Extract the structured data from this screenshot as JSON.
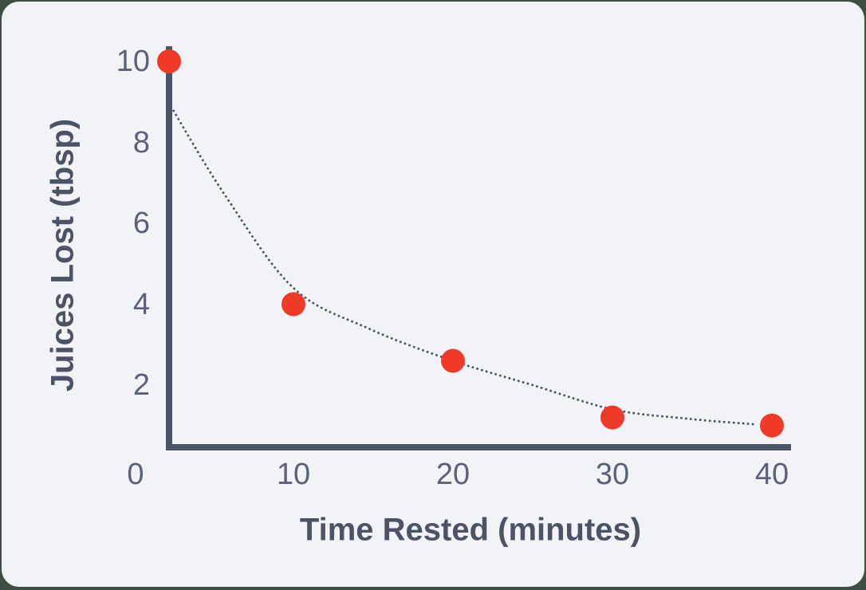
{
  "page": {
    "background_color": "#3d4f43",
    "card_color": "#f2f3f7"
  },
  "chart_data": {
    "type": "scatter",
    "title": "",
    "xlabel": "Time Rested (minutes)",
    "ylabel": "Juices Lost (tbsp)",
    "x_tick_labels": [
      "0",
      "10",
      "20",
      "30",
      "40"
    ],
    "y_tick_labels": [
      "10",
      "8",
      "6",
      "4",
      "2"
    ],
    "x_ticks": [
      0,
      10,
      20,
      30,
      40
    ],
    "y_ticks": [
      10,
      8,
      6,
      4,
      2
    ],
    "xlim": [
      0,
      40
    ],
    "ylim": [
      0,
      10
    ],
    "grid": false,
    "legend": null,
    "points": [
      {
        "x": 0,
        "y": 10
      },
      {
        "x": 10,
        "y": 4
      },
      {
        "x": 20,
        "y": 2.6
      },
      {
        "x": 30,
        "y": 1.2
      },
      {
        "x": 40,
        "y": 1
      }
    ],
    "trendline": {
      "style": "dotted",
      "samples": [
        {
          "x": 2.3,
          "y": 8.9
        },
        {
          "x": 5.7,
          "y": 6.7
        },
        {
          "x": 10,
          "y": 4.4
        },
        {
          "x": 14.7,
          "y": 3.4
        },
        {
          "x": 20,
          "y": 2.6
        },
        {
          "x": 25,
          "y": 2.0
        },
        {
          "x": 30,
          "y": 1.4
        },
        {
          "x": 34.7,
          "y": 1.17
        },
        {
          "x": 38.9,
          "y": 1.03
        }
      ]
    },
    "colors": {
      "point": "#f03a28",
      "axis": "#4a5568",
      "trend": "#454f66",
      "tick_text": "#59627a",
      "title_text": "#4a5466"
    }
  }
}
